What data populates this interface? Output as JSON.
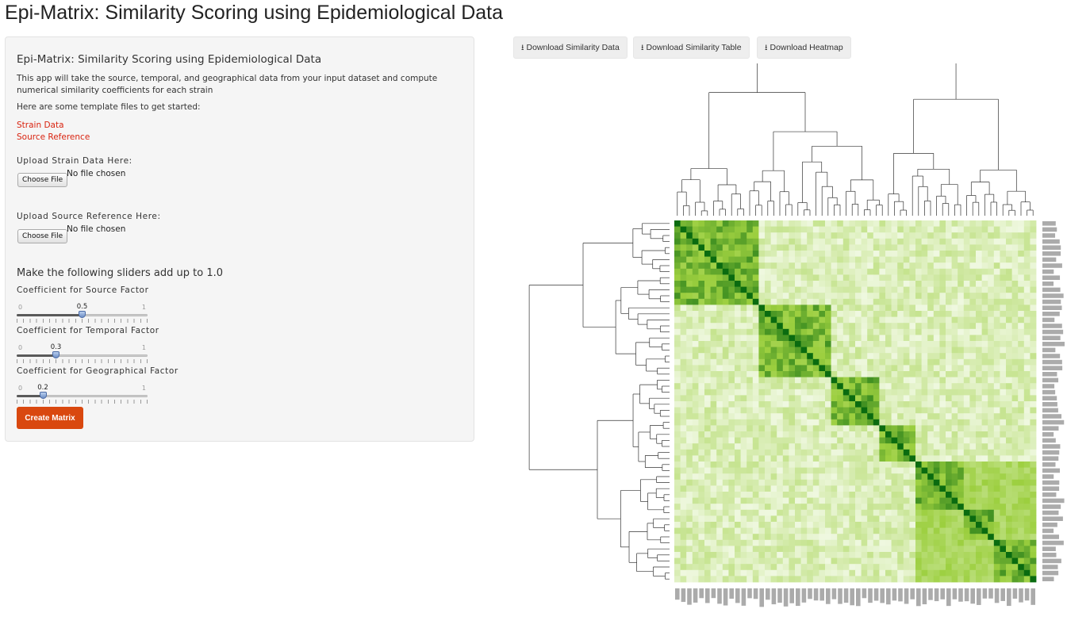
{
  "page": {
    "title": "Epi-Matrix: Similarity Scoring using Epidemiological Data"
  },
  "sidebar": {
    "heading": "Epi-Matrix: Similarity Scoring using Epidemiological Data",
    "description": "This app will take the source, temporal, and geographical data from your input dataset and compute numerical similarity coefficients for each strain",
    "template_intro": "Here are some template files to get started:",
    "links": {
      "strain_data": "Strain Data",
      "source_reference": "Source Reference"
    },
    "upload_strain": {
      "label": "Upload Strain Data Here:",
      "button": "Choose File",
      "status": "No file chosen"
    },
    "upload_source": {
      "label": "Upload Source Reference Here:",
      "button": "Choose File",
      "status": "No file chosen"
    },
    "sliders_heading": "Make the following sliders add up to 1.0",
    "sliders": [
      {
        "label": "Coefficient for Source Factor",
        "min": "0",
        "max": "1",
        "value": "0.5",
        "fraction": 0.5
      },
      {
        "label": "Coefficient for Temporal Factor",
        "min": "0",
        "max": "1",
        "value": "0.3",
        "fraction": 0.3
      },
      {
        "label": "Coefficient for Geographical Factor",
        "min": "0",
        "max": "1",
        "value": "0.2",
        "fraction": 0.2
      }
    ],
    "create_button": "Create Matrix"
  },
  "downloads": {
    "similarity_data": "Download Similarity Data",
    "similarity_table": "Download Similarity Table",
    "heatmap": "Download Heatmap"
  },
  "heatmap": {
    "colors": {
      "low": "#f7fcef",
      "mid": "#9ccf3f",
      "high": "#0a6b10",
      "dendrogram": "#333333"
    }
  }
}
